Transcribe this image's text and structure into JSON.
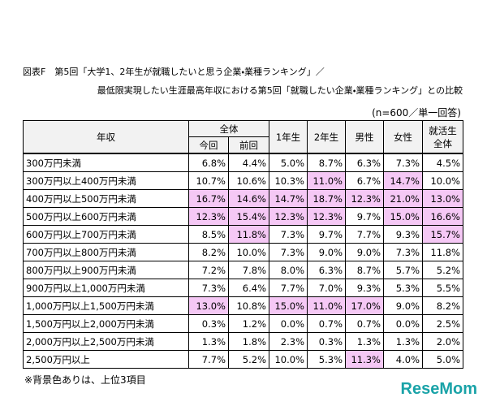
{
  "header": {
    "title": "図表F　第5回「大学1、2年生が就職したいと思う企業・業種ランキング」／",
    "subtitle": "最低限実現したい生涯最高年収における第5回「就職したい企業・業種ランキング」との比較",
    "note": "(n=600／単一回答)"
  },
  "table": {
    "columns": {
      "income": "年収",
      "all": "全体",
      "current": "今回",
      "previous": "前回",
      "rest": [
        "1年生",
        "2年生",
        "男性",
        "女性"
      ],
      "job_seekers": [
        "就活生",
        "全体"
      ]
    },
    "highlight_color": "#f5c8f5",
    "rows": [
      {
        "label": "300万円未満",
        "cells": [
          "6.8%",
          "4.4%",
          "5.0%",
          "8.7%",
          "6.3%",
          "7.3%",
          "4.5%"
        ],
        "highlight": [
          false,
          false,
          false,
          false,
          false,
          false,
          false
        ]
      },
      {
        "label": "300万円以上400万円未満",
        "cells": [
          "10.7%",
          "10.6%",
          "10.3%",
          "11.0%",
          "6.7%",
          "14.7%",
          "10.0%"
        ],
        "highlight": [
          false,
          false,
          false,
          true,
          false,
          true,
          false
        ]
      },
      {
        "label": "400万円以上500万円未満",
        "cells": [
          "16.7%",
          "14.6%",
          "14.7%",
          "18.7%",
          "12.3%",
          "21.0%",
          "13.0%"
        ],
        "highlight": [
          true,
          true,
          true,
          true,
          true,
          true,
          true
        ]
      },
      {
        "label": "500万円以上600万円未満",
        "cells": [
          "12.3%",
          "15.4%",
          "12.3%",
          "12.3%",
          "9.7%",
          "15.0%",
          "16.6%"
        ],
        "highlight": [
          true,
          true,
          true,
          true,
          false,
          true,
          true
        ]
      },
      {
        "label": "600万円以上700万円未満",
        "cells": [
          "8.5%",
          "11.8%",
          "7.3%",
          "9.7%",
          "7.7%",
          "9.3%",
          "15.7%"
        ],
        "highlight": [
          false,
          true,
          false,
          false,
          false,
          false,
          true
        ]
      },
      {
        "label": "700万円以上800万円未満",
        "cells": [
          "8.2%",
          "10.0%",
          "7.3%",
          "9.0%",
          "9.0%",
          "7.3%",
          "11.8%"
        ],
        "highlight": [
          false,
          false,
          false,
          false,
          false,
          false,
          false
        ]
      },
      {
        "label": "800万円以上900万円未満",
        "cells": [
          "7.2%",
          "7.8%",
          "8.0%",
          "6.3%",
          "8.7%",
          "5.7%",
          "5.2%"
        ],
        "highlight": [
          false,
          false,
          false,
          false,
          false,
          false,
          false
        ]
      },
      {
        "label": "900万円以上1,000万円未満",
        "cells": [
          "7.3%",
          "6.4%",
          "7.7%",
          "7.0%",
          "9.3%",
          "5.3%",
          "5.5%"
        ],
        "highlight": [
          false,
          false,
          false,
          false,
          false,
          false,
          false
        ]
      },
      {
        "label": "1,000万円以上1,500万円未満",
        "cells": [
          "13.0%",
          "10.8%",
          "15.0%",
          "11.0%",
          "17.0%",
          "9.0%",
          "8.2%"
        ],
        "highlight": [
          true,
          false,
          true,
          true,
          true,
          false,
          false
        ]
      },
      {
        "label": "1,500万円以上2,000万円未満",
        "cells": [
          "0.3%",
          "1.2%",
          "0.0%",
          "0.7%",
          "0.7%",
          "0.0%",
          "2.5%"
        ],
        "highlight": [
          false,
          false,
          false,
          false,
          false,
          false,
          false
        ]
      },
      {
        "label": "2,000万円以上2,500万円未満",
        "cells": [
          "1.3%",
          "1.8%",
          "2.3%",
          "0.3%",
          "1.3%",
          "1.3%",
          "2.0%"
        ],
        "highlight": [
          false,
          false,
          false,
          false,
          false,
          false,
          false
        ]
      },
      {
        "label": "2,500万円以上",
        "cells": [
          "7.7%",
          "5.2%",
          "10.0%",
          "5.3%",
          "11.3%",
          "4.0%",
          "5.0%"
        ],
        "highlight": [
          false,
          false,
          false,
          false,
          true,
          false,
          false
        ]
      }
    ]
  },
  "footnote": "※背景色ありは、上位3項目",
  "logo": "ReseMom"
}
